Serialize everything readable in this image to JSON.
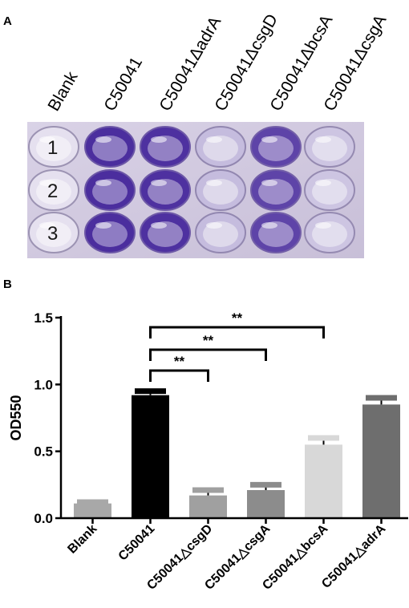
{
  "panels": {
    "a": "A",
    "b": "B"
  },
  "plate": {
    "column_labels": [
      "Blank",
      "C50041",
      "C50041ΔadrA",
      "C50041ΔcsgD",
      "C50041ΔbcsA",
      "C50041ΔcsgA"
    ],
    "row_labels": [
      "1",
      "2",
      "3"
    ],
    "staining": [
      0.0,
      1.0,
      0.95,
      0.2,
      0.85,
      0.15
    ],
    "colors": {
      "background": "#c8bfd8",
      "stain": "#4b2e9e",
      "clear_well": "#f2f0f6"
    }
  },
  "chart_data": {
    "type": "bar",
    "categories": [
      "Blank",
      "C50041",
      "C50041△csgD",
      "C50041△csgA",
      "C50041△bcsA",
      "C50041△adrA"
    ],
    "values": [
      0.11,
      0.92,
      0.17,
      0.21,
      0.55,
      0.85
    ],
    "errors": [
      0.01,
      0.03,
      0.04,
      0.04,
      0.05,
      0.05
    ],
    "colors": [
      "#a8a8a8",
      "#000000",
      "#a0a0a0",
      "#8c8c8c",
      "#d8d8d8",
      "#6e6e6e"
    ],
    "ylabel": "OD550",
    "xlabel": "",
    "ylim": [
      0,
      1.5
    ],
    "yticks": [
      "0.0",
      "0.5",
      "1.0",
      "1.5"
    ],
    "ytick_values": [
      0,
      0.5,
      1.0,
      1.5
    ],
    "significance": [
      {
        "from": 1,
        "to": 2,
        "label": "**"
      },
      {
        "from": 1,
        "to": 3,
        "label": "**"
      },
      {
        "from": 1,
        "to": 4,
        "label": "**"
      }
    ]
  }
}
